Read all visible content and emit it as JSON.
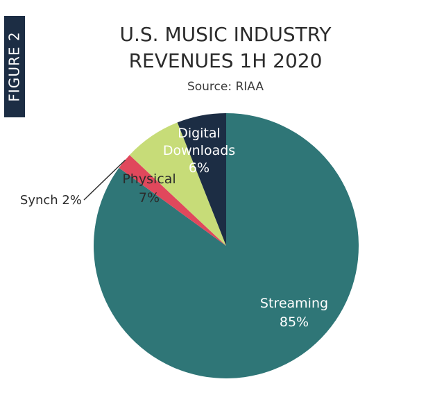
{
  "figure_label": "FIGURE 2",
  "chart_data": {
    "type": "pie",
    "title_line1": "U.S. MUSIC INDUSTRY",
    "title_line2": "REVENUES 1H 2020",
    "subtitle": "Source: RIAA",
    "slices": [
      {
        "label": "Streaming",
        "value": 85,
        "value_text": "85%",
        "color": "#2f7677"
      },
      {
        "label": "Synch",
        "value": 2,
        "value_text": "2%",
        "color": "#e0485c"
      },
      {
        "label": "Physical",
        "value": 7,
        "value_text": "7%",
        "color": "#c7dc78"
      },
      {
        "label_lines": [
          "Digital",
          "Downloads"
        ],
        "value": 6,
        "value_text": "6%",
        "color": "#1c2d44"
      }
    ]
  }
}
